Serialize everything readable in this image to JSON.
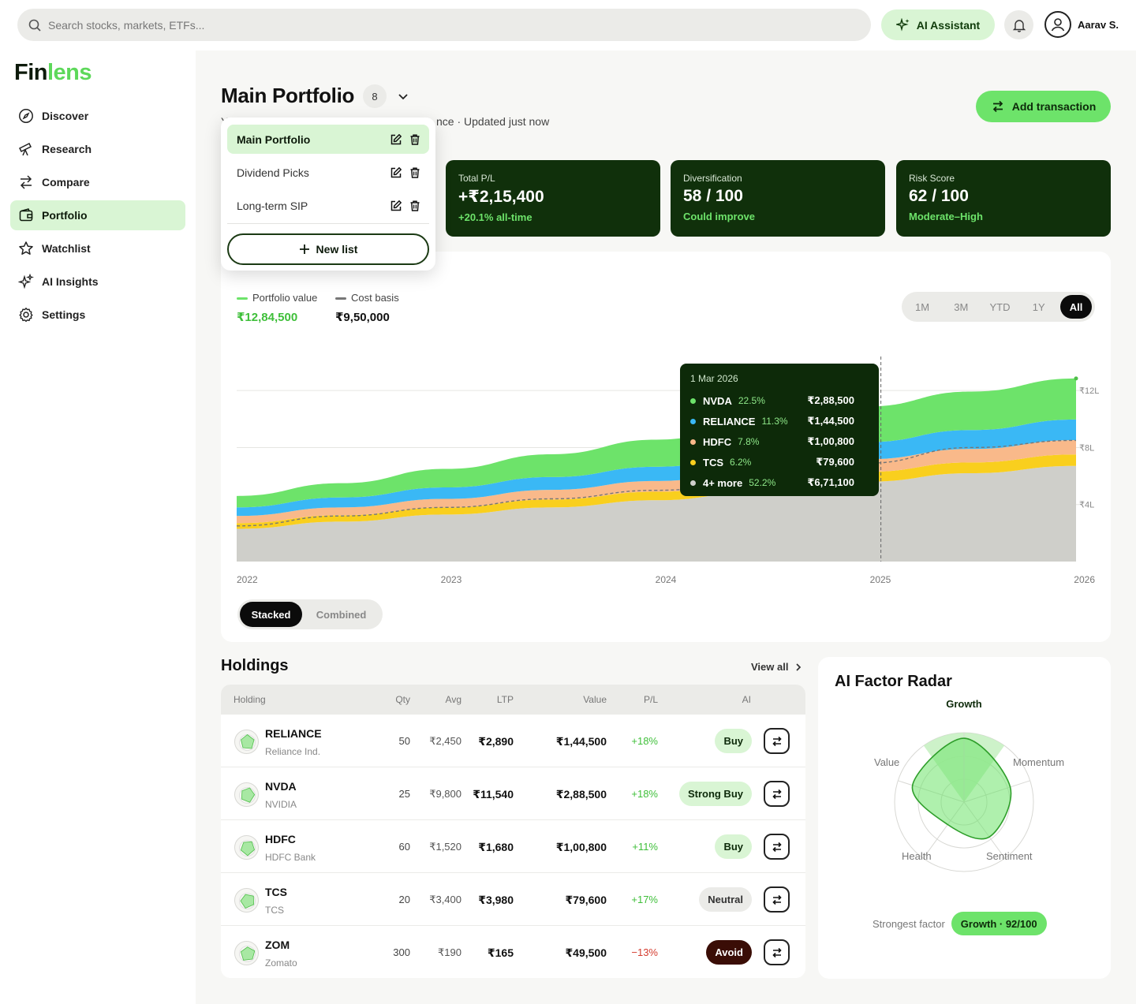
{
  "topbar": {
    "search_placeholder": "Search stocks, markets, ETFs...",
    "ai_button": "AI Assistant",
    "user_name": "Aarav S."
  },
  "brand": {
    "part1": "Fin",
    "part2": "lens",
    "color_primary": "#0d1a0b",
    "color_accent": "#5dd85a"
  },
  "sidebar": {
    "items": [
      {
        "label": "Discover",
        "icon": "compass-icon"
      },
      {
        "label": "Research",
        "icon": "telescope-icon"
      },
      {
        "label": "Compare",
        "icon": "arrows-swap-icon"
      },
      {
        "label": "Portfolio",
        "icon": "wallet-icon",
        "active": true
      },
      {
        "label": "Watchlist",
        "icon": "star-icon"
      },
      {
        "label": "AI Insights",
        "icon": "sparkles-icon"
      },
      {
        "label": "Settings",
        "icon": "gear-icon"
      }
    ]
  },
  "header": {
    "title": "Main Portfolio",
    "count": "8",
    "subtitle_visible_left": "Y",
    "subtitle_visible_mid": "r",
    "subtitle_visible_right": "nce · Updated just now",
    "add_transaction": "Add transaction"
  },
  "dropdown": {
    "items": [
      {
        "label": "Main Portfolio",
        "active": true
      },
      {
        "label": "Dividend Picks"
      },
      {
        "label": "Long-term SIP"
      }
    ],
    "new_list": "New list"
  },
  "stats": [
    {
      "label": "Total P/L",
      "value": "+₹2,15,400",
      "sub": "+20.1% all-time"
    },
    {
      "label": "Diversification",
      "value": "58 / 100",
      "sub": "Could improve"
    },
    {
      "label": "Risk Score",
      "value": "62 / 100",
      "sub": "Moderate–High"
    }
  ],
  "chart_legend": {
    "portfolio_label": "Portfolio value",
    "portfolio_value": "₹12,84,500",
    "cost_label": "Cost basis",
    "cost_value": "₹9,50,000"
  },
  "ranges": [
    "1M",
    "3M",
    "YTD",
    "1Y",
    "All"
  ],
  "active_range": "All",
  "view_toggle": {
    "stacked": "Stacked",
    "combined": "Combined"
  },
  "tooltip": {
    "date": "1 Mar 2026",
    "rows": [
      {
        "name": "NVDA",
        "pct": "22.5%",
        "amount": "₹2,88,500",
        "color": "#6de36a"
      },
      {
        "name": "RELIANCE",
        "pct": "11.3%",
        "amount": "₹1,44,500",
        "color": "#3ab8f5"
      },
      {
        "name": "HDFC",
        "pct": "7.8%",
        "amount": "₹1,00,800",
        "color": "#f9b98a"
      },
      {
        "name": "TCS",
        "pct": "6.2%",
        "amount": "₹79,600",
        "color": "#f9cf1e"
      },
      {
        "name": "4+ more",
        "pct": "52.2%",
        "amount": "₹6,71,100",
        "color": "#d0d0cc"
      }
    ]
  },
  "chart_data": {
    "type": "area",
    "x": [
      2022,
      2022.5,
      2023,
      2023.5,
      2024,
      2024.5,
      2025,
      2025.5,
      2026
    ],
    "x_tick_labels": [
      "2022",
      "2023",
      "2024",
      "2025",
      "2026"
    ],
    "y_tick_labels": [
      "₹12L",
      "₹8L",
      "₹4L"
    ],
    "y_ticks": [
      12,
      8,
      4
    ],
    "ylim": [
      0,
      14
    ],
    "series": [
      {
        "values": [
          2.3,
          2.8,
          3.3,
          3.8,
          4.3,
          4.9,
          5.6,
          6.2,
          6.71
        ],
        "color": "#cfcfca"
      },
      {
        "values": [
          0.4,
          0.45,
          0.5,
          0.55,
          0.6,
          0.65,
          0.7,
          0.75,
          0.8
        ],
        "color": "#f9cf1e"
      },
      {
        "values": [
          0.5,
          0.55,
          0.6,
          0.68,
          0.75,
          0.82,
          0.88,
          0.95,
          1.01
        ],
        "color": "#f9b98a"
      },
      {
        "values": [
          0.6,
          0.7,
          0.8,
          0.9,
          1.0,
          1.1,
          1.2,
          1.33,
          1.45
        ],
        "color": "#3ab8f5"
      },
      {
        "values": [
          0.8,
          1.0,
          1.3,
          1.6,
          1.9,
          2.2,
          2.5,
          2.7,
          2.88
        ],
        "color": "#6de36a"
      }
    ],
    "cost_basis": [
      2.5,
      3.2,
      3.8,
      4.4,
      5.0,
      5.6,
      6.9,
      8.0,
      8.5
    ],
    "marker_x": 2025.07
  },
  "holdings": {
    "title": "Holdings",
    "view_all": "View all",
    "headers": {
      "holding": "Holding",
      "qty": "Qty",
      "avg": "Avg",
      "ltp": "LTP",
      "value": "Value",
      "pl": "P/L",
      "ai": "AI"
    },
    "rows": [
      {
        "ticker": "RELIANCE",
        "name": "Reliance Ind.",
        "qty": "50",
        "avg": "₹2,450",
        "ltp": "₹2,890",
        "value": "₹1,44,500",
        "pl": "+18%",
        "dir": "up",
        "ai": "Buy",
        "ai_kind": "buy"
      },
      {
        "ticker": "NVDA",
        "name": "NVIDIA",
        "qty": "25",
        "avg": "₹9,800",
        "ltp": "₹11,540",
        "value": "₹2,88,500",
        "pl": "+18%",
        "dir": "up",
        "ai": "Strong Buy",
        "ai_kind": "buy"
      },
      {
        "ticker": "HDFC",
        "name": "HDFC Bank",
        "qty": "60",
        "avg": "₹1,520",
        "ltp": "₹1,680",
        "value": "₹1,00,800",
        "pl": "+11%",
        "dir": "up",
        "ai": "Buy",
        "ai_kind": "buy"
      },
      {
        "ticker": "TCS",
        "name": "TCS",
        "qty": "20",
        "avg": "₹3,400",
        "ltp": "₹3,980",
        "value": "₹79,600",
        "pl": "+17%",
        "dir": "up",
        "ai": "Neutral",
        "ai_kind": "neutral"
      },
      {
        "ticker": "ZOM",
        "name": "Zomato",
        "qty": "300",
        "avg": "₹190",
        "ltp": "₹165",
        "value": "₹49,500",
        "pl": "−13%",
        "dir": "down",
        "ai": "Avoid",
        "ai_kind": "avoid"
      }
    ]
  },
  "radar": {
    "title": "AI Factor Radar",
    "axes": [
      "Growth",
      "Momentum",
      "Sentiment",
      "Health",
      "Value"
    ],
    "values": [
      92,
      70,
      62,
      40,
      78
    ],
    "strongest_label": "Strongest factor",
    "strongest_value": "Growth · 92/100"
  }
}
